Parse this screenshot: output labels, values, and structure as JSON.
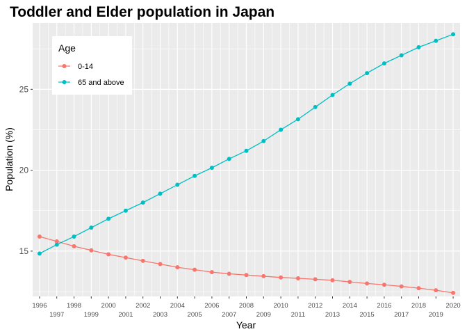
{
  "chart_data": {
    "type": "line",
    "title": "Toddler and Elder population in Japan",
    "xlabel": "Year",
    "ylabel": "Population (%)",
    "x": [
      1996,
      1997,
      1998,
      1999,
      2000,
      2001,
      2002,
      2003,
      2004,
      2005,
      2006,
      2007,
      2008,
      2009,
      2010,
      2011,
      2012,
      2013,
      2014,
      2015,
      2016,
      2017,
      2018,
      2019,
      2020
    ],
    "x_tick_labels": [
      "1996",
      "1997",
      "1998",
      "1999",
      "2000",
      "2001",
      "2002",
      "2003",
      "2004",
      "2005",
      "2006",
      "2007",
      "2008",
      "2009",
      "2010",
      "2011",
      "2012",
      "2013",
      "2014",
      "2015",
      "2016",
      "2017",
      "2018",
      "2019",
      "2020"
    ],
    "y_ticks": [
      15,
      20,
      25
    ],
    "y_tick_labels": [
      "15",
      "20",
      "25"
    ],
    "ylim": [
      12.2,
      29.1
    ],
    "xlim": [
      1995.6,
      2020.4
    ],
    "grid": true,
    "legend": {
      "title": "Age",
      "position": "top-left"
    },
    "series": [
      {
        "name": "0-14",
        "color": "#F8766D",
        "values": [
          15.9,
          15.6,
          15.3,
          15.05,
          14.8,
          14.6,
          14.4,
          14.2,
          14.0,
          13.85,
          13.7,
          13.6,
          13.52,
          13.45,
          13.37,
          13.32,
          13.26,
          13.2,
          13.1,
          13.0,
          12.92,
          12.82,
          12.71,
          12.58,
          12.42
        ]
      },
      {
        "name": "65 and above",
        "color": "#00BFC4",
        "values": [
          14.85,
          15.4,
          15.9,
          16.45,
          17.0,
          17.5,
          18.0,
          18.55,
          19.1,
          19.65,
          20.15,
          20.7,
          21.2,
          21.8,
          22.5,
          23.15,
          23.9,
          24.65,
          25.35,
          26.0,
          26.6,
          27.1,
          27.6,
          28.0,
          28.4
        ]
      }
    ]
  }
}
